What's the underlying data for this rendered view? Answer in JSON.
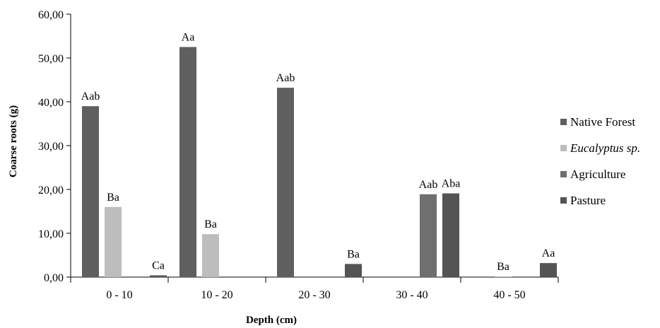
{
  "chart_data": {
    "type": "bar",
    "title": "",
    "xlabel": "Depth (cm)",
    "ylabel": "Coarse roots (g)",
    "ylim": [
      0,
      60
    ],
    "y_ticks": [
      "0,00",
      "10,00",
      "20,00",
      "30,00",
      "40,00",
      "50,00",
      "60,00"
    ],
    "categories": [
      "0 - 10",
      "10 - 20",
      "20 - 30",
      "30 - 40",
      "40 - 50"
    ],
    "grid": false,
    "legend_position": "right",
    "series": [
      {
        "name": "Native Forest",
        "italic": false,
        "color": "#5f5f5f",
        "values": [
          39.0,
          52.5,
          43.2,
          null,
          null
        ],
        "labels": [
          "Aab",
          "Aa",
          "Aab",
          "",
          ""
        ]
      },
      {
        "name": "Eucalyptus sp.",
        "italic": true,
        "color": "#bdbdbd",
        "values": [
          16.0,
          9.8,
          null,
          null,
          0.0
        ],
        "labels": [
          "Ba",
          "Ba",
          "",
          "",
          "Ba"
        ]
      },
      {
        "name": "Agriculture",
        "italic": false,
        "color": "#6f6f6f",
        "values": [
          null,
          null,
          null,
          18.9,
          null
        ],
        "labels": [
          "",
          "",
          "",
          "Aab",
          ""
        ]
      },
      {
        "name": "Pasture",
        "italic": false,
        "color": "#545454",
        "values": [
          0.4,
          null,
          3.0,
          19.1,
          3.2
        ],
        "labels": [
          "Ca",
          "",
          "Ba",
          "Aba",
          "Aa"
        ]
      }
    ]
  }
}
